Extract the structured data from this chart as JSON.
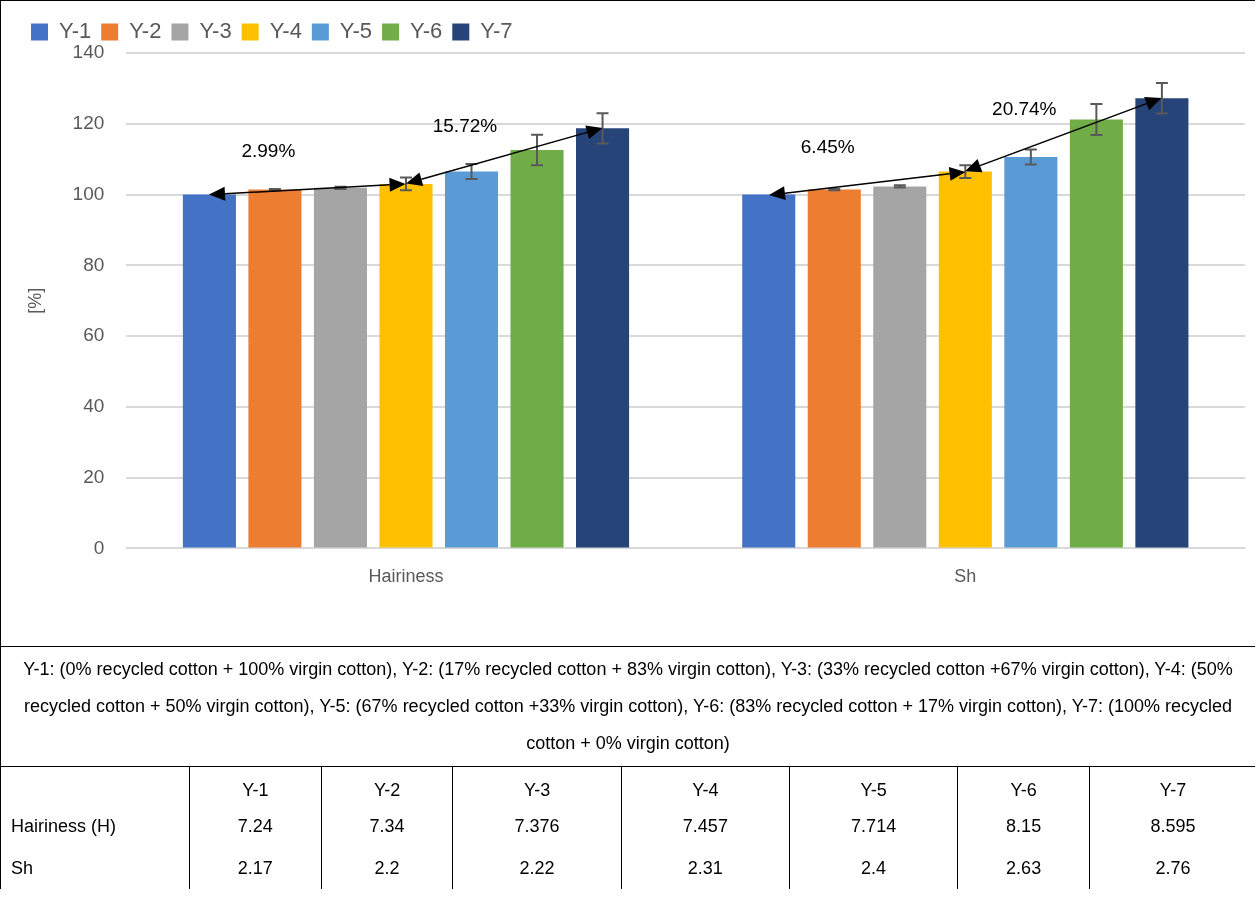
{
  "chart_data": [
    {
      "type": "bar",
      "categories": [
        "Hairiness",
        "Sh"
      ],
      "ylabel": "[%]",
      "ylim": [
        0,
        140
      ],
      "yticks": [
        0,
        20,
        40,
        60,
        80,
        100,
        120,
        140
      ],
      "grid": "y",
      "legend": "top left",
      "series": [
        {
          "name": "Y-1",
          "color": "#4472c4",
          "values": [
            100,
            100
          ],
          "errors": [
            null,
            null
          ]
        },
        {
          "name": "Y-2",
          "color": "#ed7d31",
          "values": [
            101.4,
            101.4
          ],
          "errors": [
            0.2,
            0.2
          ]
        },
        {
          "name": "Y-3",
          "color": "#a5a5a5",
          "values": [
            101.9,
            102.3
          ],
          "errors": [
            0.3,
            0.3
          ]
        },
        {
          "name": "Y-4",
          "color": "#ffc000",
          "values": [
            103.0,
            106.5
          ],
          "errors": [
            1.8,
            1.8
          ]
        },
        {
          "name": "Y-5",
          "color": "#5b9bd5",
          "values": [
            106.5,
            110.6
          ],
          "errors": [
            2.1,
            2.1
          ]
        },
        {
          "name": "Y-6",
          "color": "#70ad47",
          "values": [
            112.6,
            121.2
          ],
          "errors": [
            4.3,
            4.4
          ]
        },
        {
          "name": "Y-7",
          "color": "#264478",
          "values": [
            118.7,
            127.2
          ],
          "errors": [
            4.3,
            4.3
          ]
        }
      ],
      "annotations": [
        "2.99%",
        "15.72%",
        "6.45%",
        "20.74%",
        "Y-1: (0% recycled cotton + 100% virgin cotton), Y-2: (17% recycled cotton + 83% virgin cotton), Y-3: (33% recycled cotton +67% virgin cotton), Y-4: (50% recycled cotton + 50% virgin cotton), Y-5: (67% recycled cotton +33% virgin cotton), Y-6: (83% recycled cotton + 17% virgin cotton), Y-7: (100% recycled cotton + 0% virgin cotton)"
      ]
    },
    {
      "type": "other",
      "categories": [
        "Y-1",
        "Y-2",
        "Y-3",
        "Y-4",
        "Y-5",
        "Y-6",
        "Y-7"
      ],
      "annotations": [
        "Hairiness (H)",
        "7.24",
        "7.34",
        "7.376",
        "7.457",
        "7.714",
        "8.15",
        "8.595",
        "Sh",
        "2.17",
        "2.2",
        "2.22",
        "2.31",
        "2.4",
        "2.63",
        "2.76"
      ]
    }
  ]
}
